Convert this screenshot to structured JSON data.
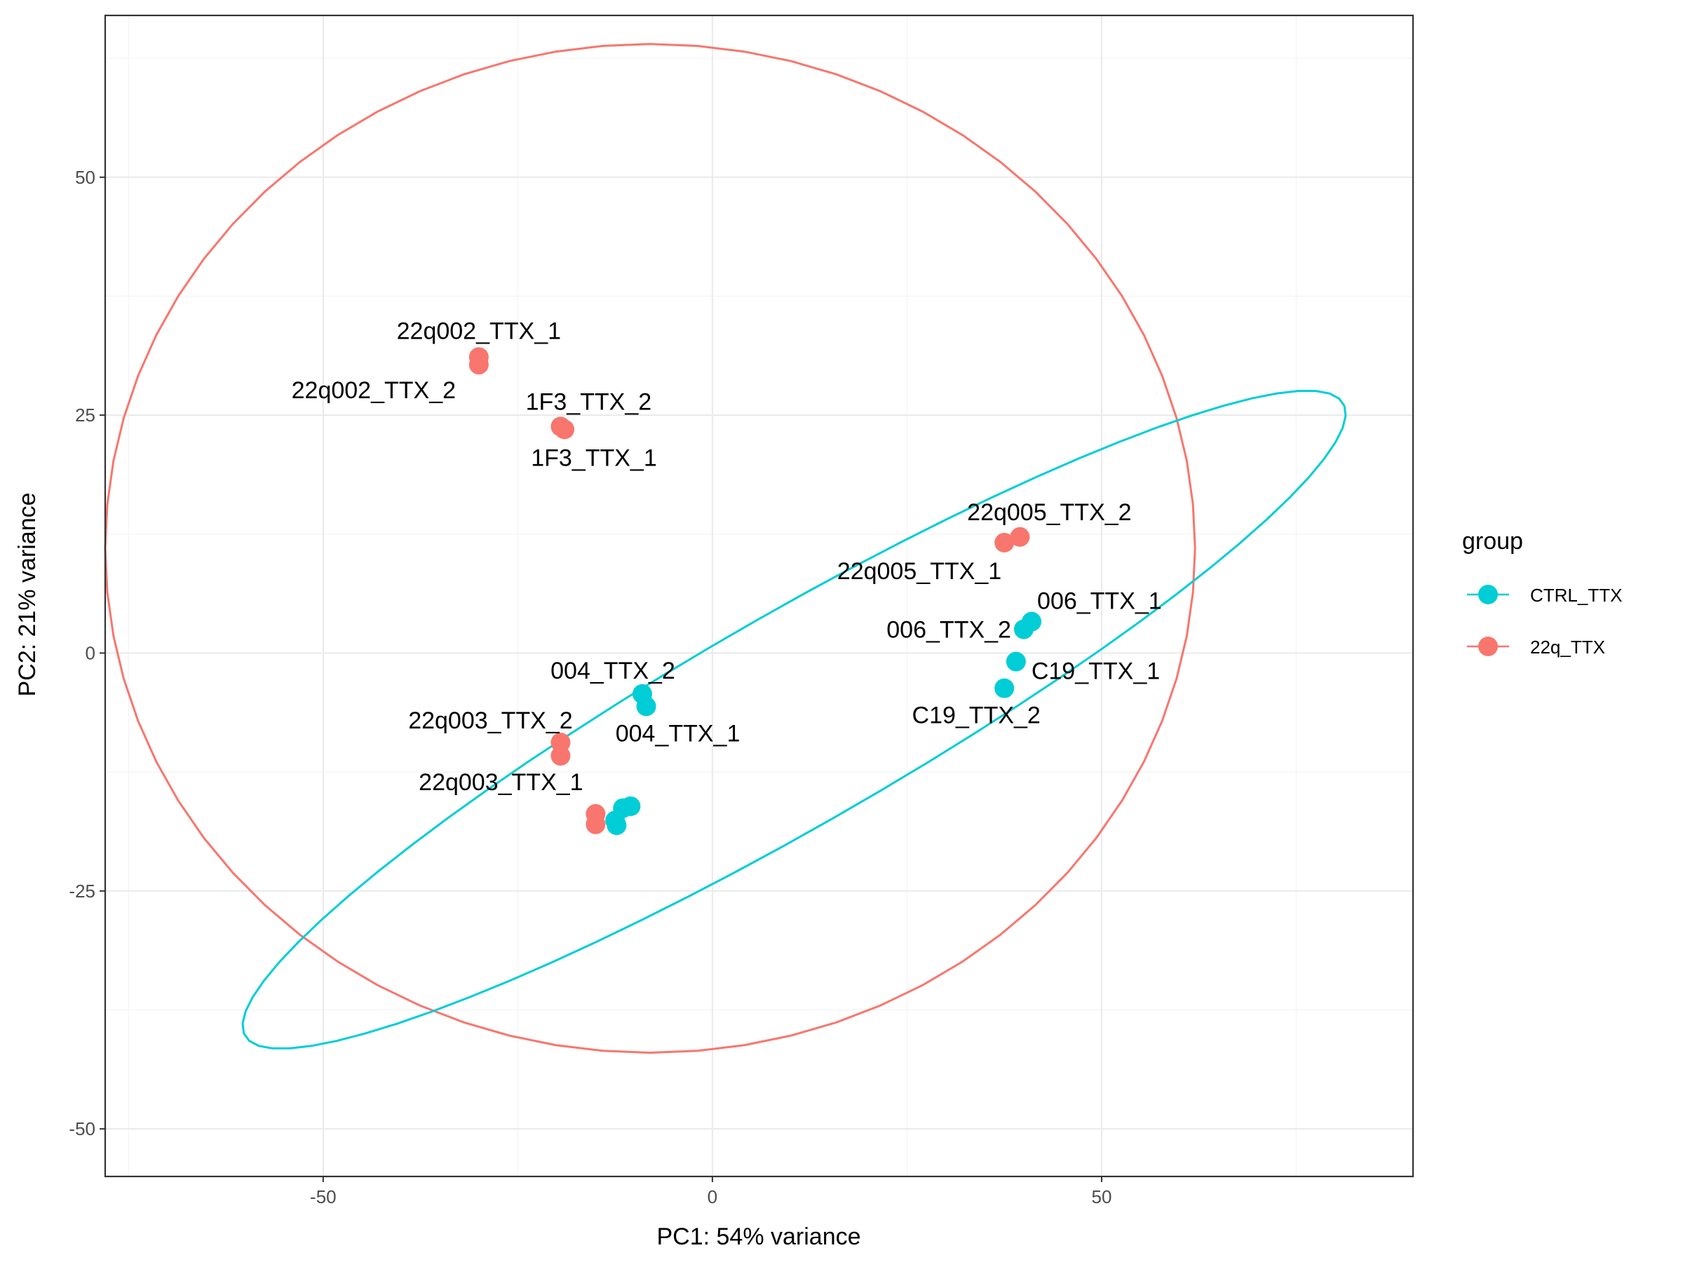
{
  "chart_data": {
    "type": "scatter",
    "xlabel": "PC1: 54% variance",
    "ylabel": "PC2: 21% variance",
    "xlim": [
      -78,
      90
    ],
    "ylim": [
      -55,
      67
    ],
    "x_ticks": [
      -50,
      0,
      50
    ],
    "y_ticks": [
      -50,
      -25,
      0,
      25,
      50
    ],
    "x_tick_labels": [
      "-50",
      "0",
      "50"
    ],
    "y_tick_labels": [
      "-50",
      "-25",
      "0",
      "25",
      "50"
    ],
    "grid": true,
    "legend": {
      "title": "group",
      "position": "right",
      "entries": [
        {
          "label": "CTRL_TTX",
          "color": "#00cdd5"
        },
        {
          "label": "22q_TTX",
          "color": "#f8766d"
        }
      ]
    },
    "series": [
      {
        "name": "CTRL_TTX",
        "color": "#00cdd5",
        "points": [
          {
            "label": "006_TTX_1",
            "x": 41.0,
            "y": 3.3
          },
          {
            "label": "006_TTX_2",
            "x": 40.0,
            "y": 2.5
          },
          {
            "label": "C19_TTX_1",
            "x": 39.0,
            "y": -0.9
          },
          {
            "label": "C19_TTX_2",
            "x": 37.5,
            "y": -3.7
          },
          {
            "label": "004_TTX_2",
            "x": -9.0,
            "y": -4.3
          },
          {
            "label": "004_TTX_1",
            "x": -8.5,
            "y": -5.6
          },
          {
            "label": "",
            "x": -10.5,
            "y": -16.1
          },
          {
            "label": "",
            "x": -11.5,
            "y": -16.3
          },
          {
            "label": "",
            "x": -12.5,
            "y": -17.6
          },
          {
            "label": "",
            "x": -12.3,
            "y": -18.1
          }
        ]
      },
      {
        "name": "22q_TTX",
        "color": "#f8766d",
        "points": [
          {
            "label": "22q002_TTX_1",
            "x": -30.0,
            "y": 31.1
          },
          {
            "label": "22q002_TTX_2",
            "x": -30.0,
            "y": 30.3
          },
          {
            "label": "1F3_TTX_2",
            "x": -19.5,
            "y": 23.8
          },
          {
            "label": "1F3_TTX_1",
            "x": -19.0,
            "y": 23.5
          },
          {
            "label": "22q005_TTX_2",
            "x": 39.5,
            "y": 12.2
          },
          {
            "label": "22q005_TTX_1",
            "x": 37.5,
            "y": 11.6
          },
          {
            "label": "22q003_TTX_2",
            "x": -19.5,
            "y": -9.4
          },
          {
            "label": "",
            "x": -19.5,
            "y": -10.8
          },
          {
            "label": "22q003_TTX_1",
            "x": -15.0,
            "y": -16.9
          },
          {
            "label": "",
            "x": -15.0,
            "y": -18.0
          }
        ]
      }
    ],
    "ellipses": [
      {
        "group": "22q_TTX",
        "color": "#f8766d",
        "center": [
          -8,
          11
        ],
        "radius_x": 70,
        "radius_y": 53,
        "angle_deg": 0
      },
      {
        "group": "CTRL_TTX",
        "color": "#00cdd5",
        "center": [
          10.5,
          -7
        ],
        "radius_x": 78,
        "radius_y": 11.5,
        "angle_deg": 25
      }
    ]
  }
}
